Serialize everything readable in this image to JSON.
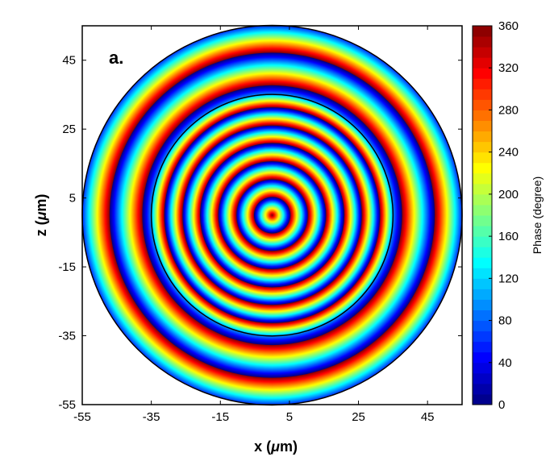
{
  "chart_data": {
    "type": "heatmap",
    "title": "",
    "panel_label": "a.",
    "xlabel": {
      "prefix": "x (",
      "mu": "μ",
      "suffix": "m)"
    },
    "ylabel": {
      "prefix": "z (",
      "mu": "μ",
      "suffix": "m)"
    },
    "xlim": [
      -55,
      55
    ],
    "ylim": [
      -55,
      55
    ],
    "x_ticks": [
      "-55",
      "-35",
      "-15",
      "5",
      "25",
      "45"
    ],
    "y_ticks": [
      "-55",
      "-35",
      "-15",
      "5",
      "25",
      "45"
    ],
    "colorbar": {
      "label": "Phase (degree)",
      "range": [
        0,
        360
      ],
      "ticks": [
        "0",
        "40",
        "80",
        "120",
        "160",
        "200",
        "240",
        "280",
        "320",
        "360"
      ],
      "colormap": "jet"
    },
    "field": {
      "center": [
        0,
        0
      ],
      "outer_radius": 55,
      "inner_boundary_radius": 35,
      "inner_region_ring_spacing_um": 5.2,
      "outer_region_ring_spacing_um": 9.5
    },
    "grid": false,
    "legend": "none"
  }
}
